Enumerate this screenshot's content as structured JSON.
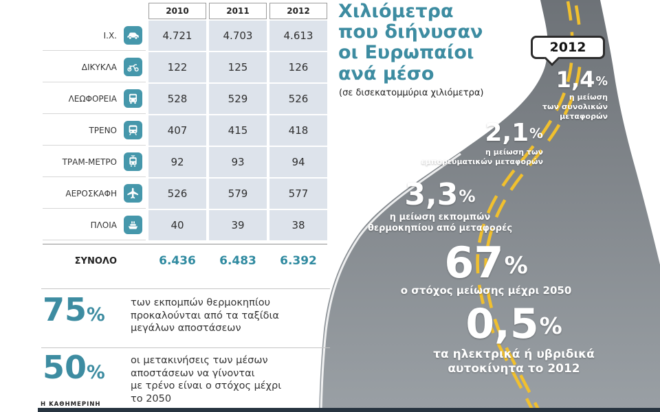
{
  "brand": {
    "name": "Η ΚΑΘΗΜΕΡΙΝΗ"
  },
  "sign": {
    "label": "2012"
  },
  "chart_data": {
    "type": "table",
    "title": "Χιλιόμετρα\nπου διήνυσαν\nοι Ευρωπαίοι\nανά μέσο",
    "subtitle": "(σε δισεκατομμύρια χιλιόμετρα)",
    "columns": [
      "2010",
      "2011",
      "2012"
    ],
    "rows": [
      {
        "label": "Ι.Χ.",
        "icon": "car-icon",
        "values": [
          "4.721",
          "4.703",
          "4.613"
        ]
      },
      {
        "label": "ΔΙΚΥΚΛΑ",
        "icon": "motorcycle-icon",
        "values": [
          "122",
          "125",
          "126"
        ]
      },
      {
        "label": "ΛΕΩΦΟΡΕΙΑ",
        "icon": "bus-icon",
        "values": [
          "528",
          "529",
          "526"
        ]
      },
      {
        "label": "ΤΡΕΝΟ",
        "icon": "train-icon",
        "values": [
          "407",
          "415",
          "418"
        ]
      },
      {
        "label": "ΤΡΑΜ-ΜΕΤΡΟ",
        "icon": "tram-icon",
        "values": [
          "92",
          "93",
          "94"
        ]
      },
      {
        "label": "ΑΕΡΟΣΚΑΦΗ",
        "icon": "plane-icon",
        "values": [
          "526",
          "579",
          "577"
        ]
      },
      {
        "label": "ΠΛΟΙΑ",
        "icon": "ship-icon",
        "values": [
          "40",
          "39",
          "38"
        ]
      }
    ],
    "total": {
      "label": "ΣΥΝΟΛΟ",
      "values": [
        "6.436",
        "6.483",
        "6.392"
      ]
    },
    "road_stats": [
      {
        "value": "1,4",
        "unit": "%",
        "caption": "η μείωση\nτων συνολικών\nμεταφορών"
      },
      {
        "value": "2,1",
        "unit": "%",
        "caption": "η μείωση των\nεμπορευματικών μεταφορών"
      },
      {
        "value": "3,3",
        "unit": "%",
        "caption": "η μείωση εκπομπών\nθερμοκηπίου από μεταφορές"
      },
      {
        "value": "67",
        "unit": "%",
        "caption": "ο στόχος μείωσης μέχρι 2050"
      },
      {
        "value": "0,5",
        "unit": "%",
        "caption": "τα ηλεκτρικά ή υβριδικά\nαυτοκίνητα το 2012"
      }
    ],
    "highlight_stats": [
      {
        "value": "75",
        "unit": "%",
        "text": "των εκπομπών θερμοκηπίου\nπροκαλούνται από τα ταξίδια\nμεγάλων αποστάσεων"
      },
      {
        "value": "50",
        "unit": "%",
        "text": "οι μετακινήσεις των μέσων\nαποστάσεων να γίνονται\nμε τρένο είναι ο στόχος μέχρι\nτο 2050"
      }
    ],
    "colors": {
      "accent": "#3d8ca1",
      "table_cell": "#dde3eb",
      "road_line": "#f1c02e",
      "icon_badge": "#4597ab"
    }
  }
}
